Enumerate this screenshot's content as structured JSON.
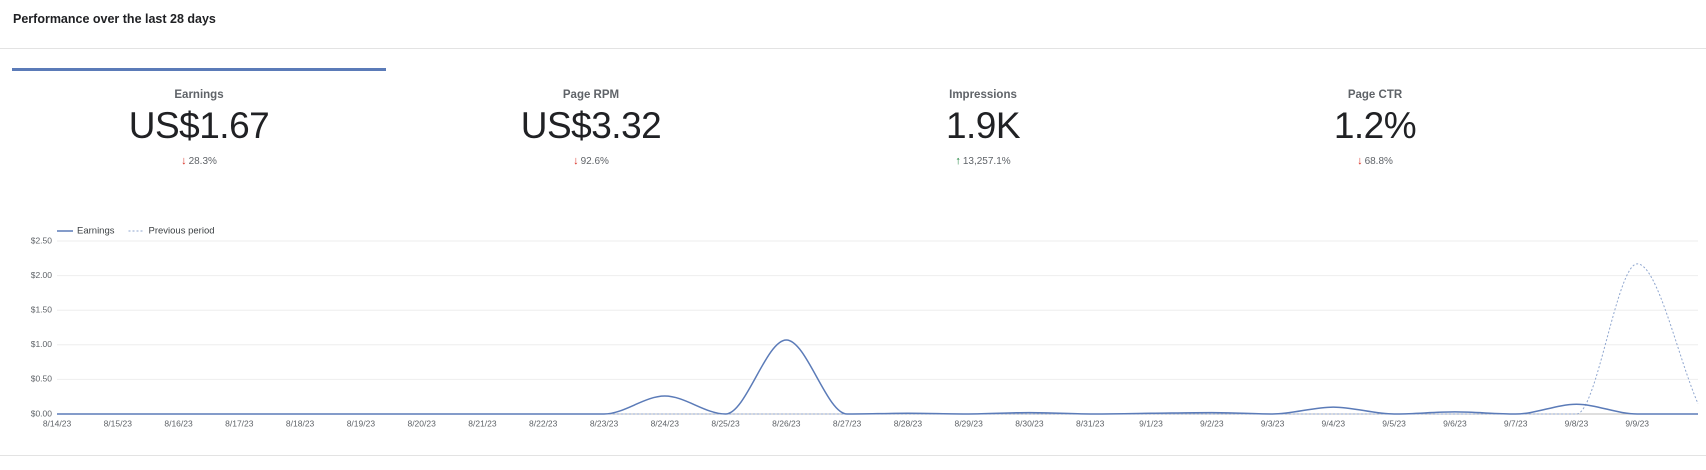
{
  "header": {
    "title": "Performance over the last 28 days"
  },
  "metrics": [
    {
      "label": "Earnings",
      "value": "US$1.67",
      "change": "28.3%",
      "trend": "down",
      "selected": true
    },
    {
      "label": "Page RPM",
      "value": "US$3.32",
      "change": "92.6%",
      "trend": "down"
    },
    {
      "label": "Impressions",
      "value": "1.9K",
      "change": "13,257.1%",
      "trend": "up"
    },
    {
      "label": "Page CTR",
      "value": "1.2%",
      "change": "68.8%",
      "trend": "down"
    }
  ],
  "chart_data": {
    "type": "line",
    "categories": [
      "8/14/23",
      "8/15/23",
      "8/16/23",
      "8/17/23",
      "8/18/23",
      "8/19/23",
      "8/20/23",
      "8/21/23",
      "8/22/23",
      "8/23/23",
      "8/24/23",
      "8/25/23",
      "8/26/23",
      "8/27/23",
      "8/28/23",
      "8/29/23",
      "8/30/23",
      "8/31/23",
      "9/1/23",
      "9/2/23",
      "9/3/23",
      "9/4/23",
      "9/5/23",
      "9/6/23",
      "9/7/23",
      "9/8/23",
      "9/9/23",
      null
    ],
    "series": [
      {
        "name": "Earnings",
        "color": "#5b7bb8",
        "dashed": false,
        "values": [
          0,
          0,
          0,
          0,
          0,
          0,
          0,
          0,
          0,
          0,
          0.26,
          0,
          1.07,
          0,
          0.01,
          0,
          0.02,
          0,
          0.01,
          0.02,
          0,
          0.1,
          0,
          0.03,
          0,
          0.14,
          0,
          0
        ]
      },
      {
        "name": "Previous period",
        "color": "#8fa6cf",
        "dashed": true,
        "values": [
          0,
          0,
          0,
          0,
          0,
          0,
          0,
          0,
          0,
          0,
          0,
          0,
          0,
          0,
          0,
          0,
          0,
          0,
          0,
          0,
          0,
          0,
          0,
          0,
          0,
          0,
          2.17,
          0.15
        ]
      }
    ],
    "ylim": [
      0,
      2.5
    ],
    "yticks": [
      {
        "value": 0,
        "label": "$0.00"
      },
      {
        "value": 0.5,
        "label": "$0.50"
      },
      {
        "value": 1,
        "label": "$1.00"
      },
      {
        "value": 1.5,
        "label": "$1.50"
      },
      {
        "value": 2,
        "label": "$2.00"
      },
      {
        "value": 2.5,
        "label": "$2.50"
      }
    ],
    "grid": true,
    "legend": "top-left"
  }
}
